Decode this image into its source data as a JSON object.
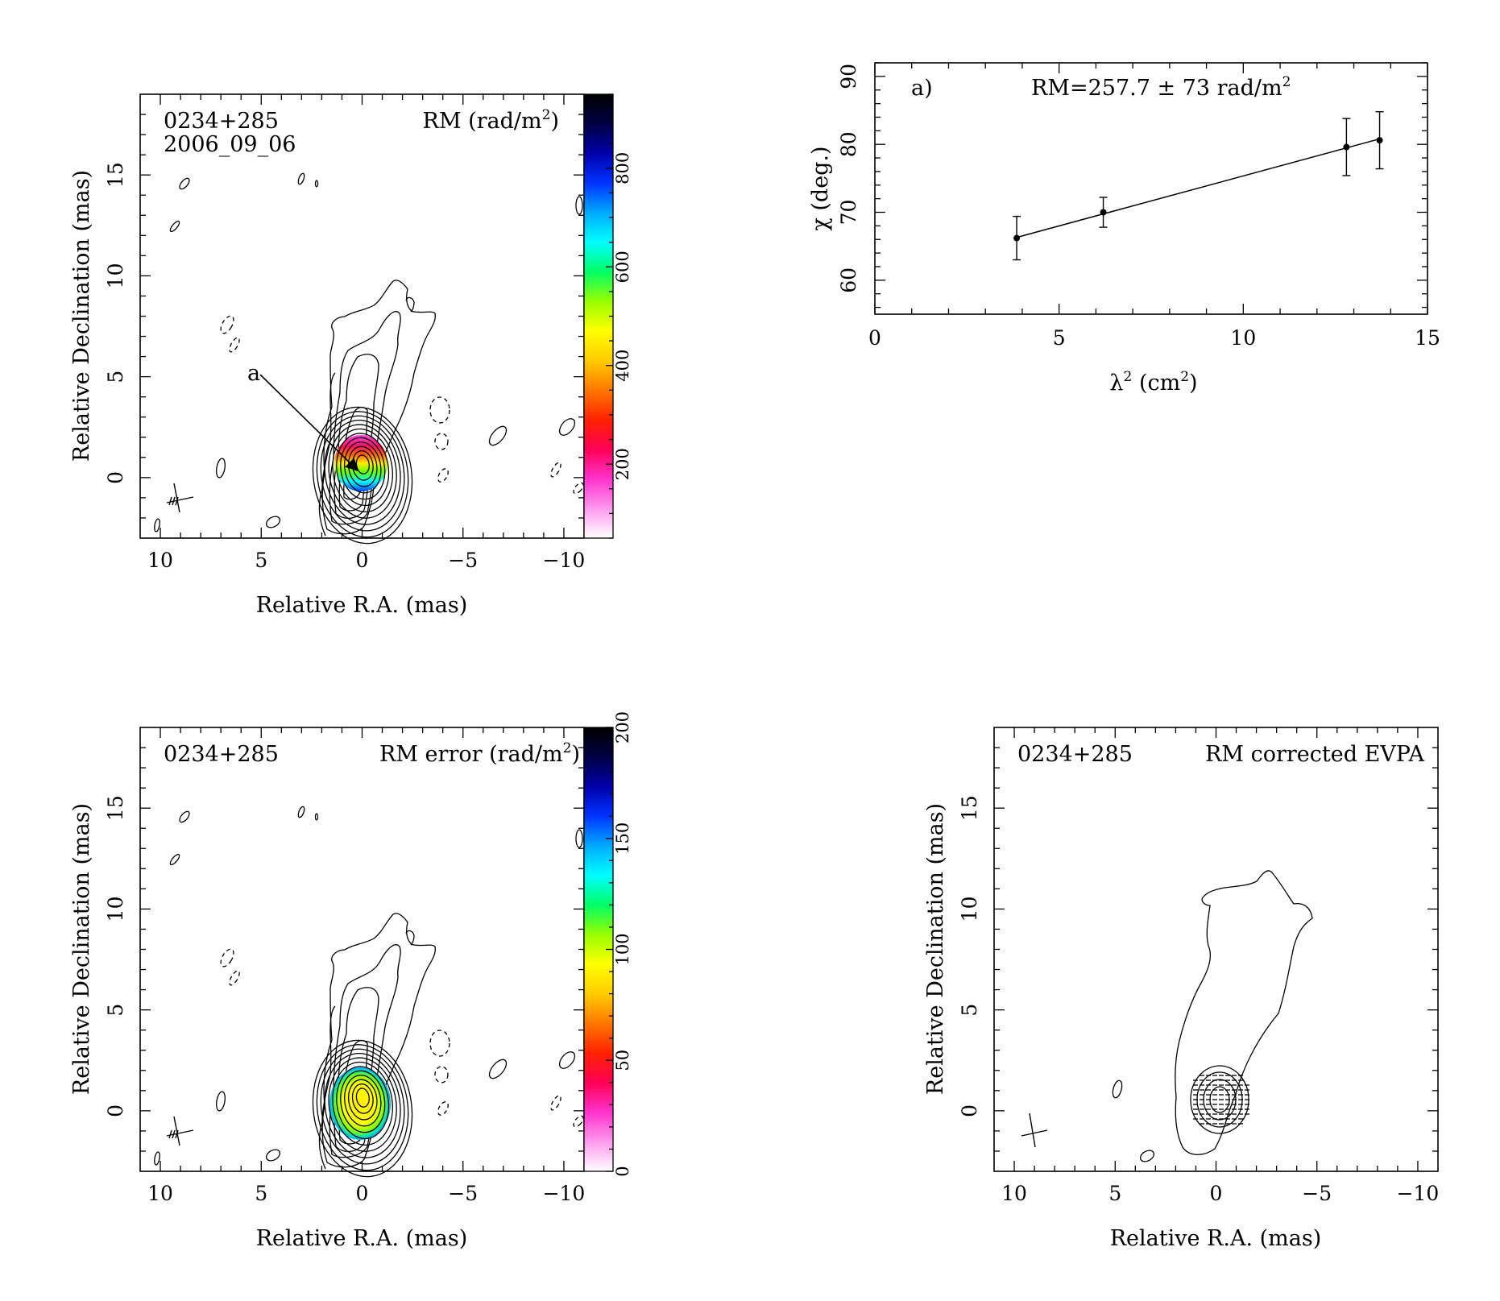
{
  "panels": {
    "rm_map": {
      "source": "0234+285",
      "epoch": "2006_09_06",
      "title_base": "RM (rad/m",
      "title_sup": "2",
      "title_end": ")",
      "xlabel": "Relative R.A. (mas)",
      "ylabel": "Relative Declination (mas)",
      "xticks": [
        "10",
        "5",
        "0",
        "−5",
        "−10"
      ],
      "yticks": [
        "0",
        "5",
        "10",
        "15"
      ],
      "marker": "a",
      "colorbar_ticks": [
        "200",
        "400",
        "600",
        "800"
      ]
    },
    "rm_error_map": {
      "source": "0234+285",
      "title_base": "RM error (rad/m",
      "title_sup": "2",
      "title_end": ")",
      "xlabel": "Relative R.A. (mas)",
      "ylabel": "Relative Declination (mas)",
      "xticks": [
        "10",
        "5",
        "0",
        "−5",
        "−10"
      ],
      "yticks": [
        "0",
        "5",
        "10",
        "15"
      ],
      "colorbar_ticks": [
        "0",
        "50",
        "100",
        "150",
        "200"
      ]
    },
    "evpa_map": {
      "source": "0234+285",
      "title": "RM corrected EVPA",
      "xlabel": "Relative R.A. (mas)",
      "ylabel": "Relative Declination (mas)",
      "xticks": [
        "10",
        "5",
        "0",
        "−5",
        "−10"
      ],
      "yticks": [
        "0",
        "5",
        "10",
        "15"
      ]
    },
    "fit": {
      "panel_label": "a)",
      "annotation_base": "RM=257.7 ± 73 rad/m",
      "annotation_sup": "2",
      "xlabel_base": "λ",
      "xlabel_sup": "2",
      "xlabel_end": " (cm",
      "xlabel_sup2": "2",
      "xlabel_close": ")",
      "ylabel": "χ (deg.)",
      "xticks": [
        "0",
        "5",
        "10",
        "15"
      ],
      "yticks": [
        "60",
        "70",
        "80",
        "90"
      ]
    }
  },
  "colorbar_colors": [
    "#ffffff",
    "#ff99ee",
    "#ff33cc",
    "#ff0055",
    "#ff2200",
    "#ff7700",
    "#ffcc00",
    "#ffff00",
    "#99ff00",
    "#00ff66",
    "#00ffff",
    "#00aaff",
    "#0033ff",
    "#0000aa",
    "#000044",
    "#000000"
  ],
  "chart_data": [
    {
      "type": "scatter",
      "xlabel": "λ² (cm²)",
      "ylabel": "χ (deg.)",
      "xlim": [
        0,
        15
      ],
      "ylim": [
        55,
        92
      ],
      "x": [
        3.85,
        6.2,
        12.8,
        13.7
      ],
      "y": [
        66.2,
        70.0,
        79.6,
        80.6
      ],
      "yerr": [
        3.2,
        2.2,
        4.2,
        4.2
      ],
      "fit_line": {
        "x": [
          3.85,
          13.7
        ],
        "y": [
          66.3,
          80.8
        ]
      },
      "annotation": "RM=257.7 ± 73 rad/m²",
      "grid": false
    },
    {
      "type": "heatmap",
      "title": "RM (rad/m²)",
      "xlabel": "Relative R.A. (mas)",
      "ylabel": "Relative Declination (mas)",
      "xlim": [
        11,
        -11
      ],
      "ylim": [
        -3,
        19
      ],
      "colorbar_range": [
        50,
        950
      ]
    },
    {
      "type": "heatmap",
      "title": "RM error (rad/m²)",
      "xlabel": "Relative R.A. (mas)",
      "ylabel": "Relative Declination (mas)",
      "xlim": [
        11,
        -11
      ],
      "ylim": [
        -3,
        19
      ],
      "colorbar_range": [
        0,
        200
      ]
    }
  ]
}
